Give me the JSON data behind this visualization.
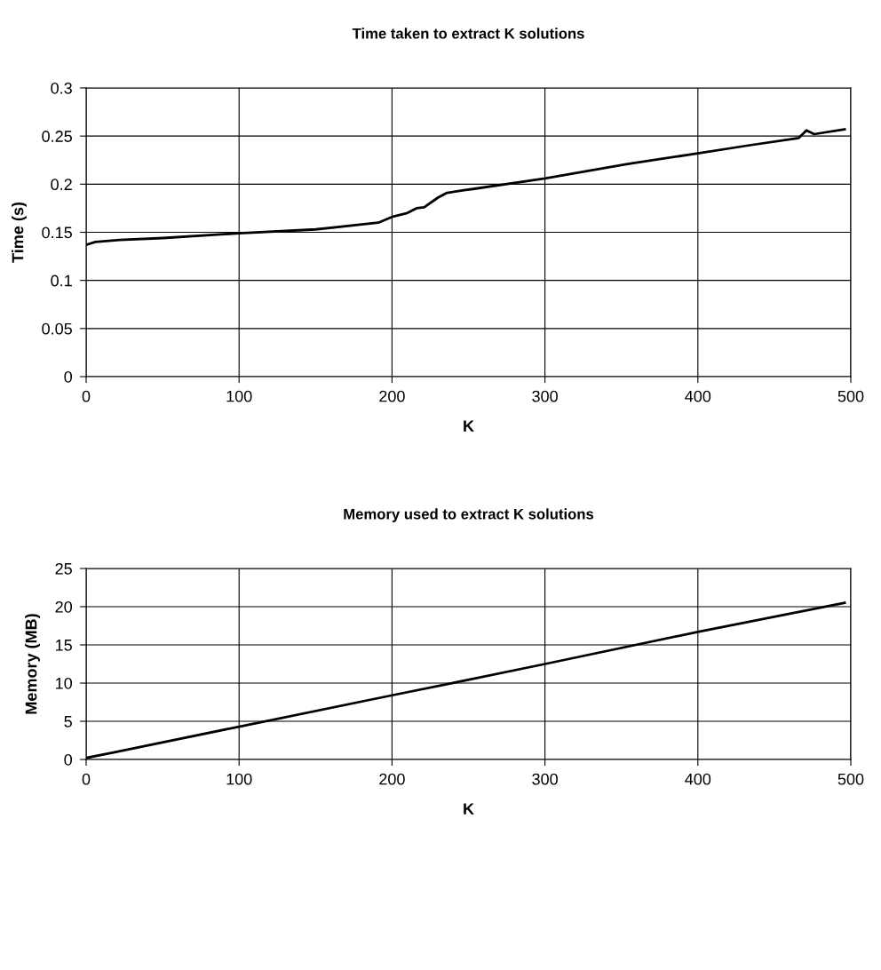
{
  "chart_data": [
    {
      "type": "line",
      "title": "Time taken to extract K solutions",
      "xlabel": "K",
      "ylabel": "Time (s)",
      "series": [
        {
          "color": "#000000",
          "x": [
            0,
            6,
            22,
            50,
            100,
            150,
            191,
            200,
            210,
            216,
            221,
            230,
            236,
            248,
            253,
            300,
            354,
            400,
            432,
            466,
            471,
            476,
            496
          ],
          "values": [
            0.137,
            0.14,
            0.142,
            0.144,
            0.149,
            0.153,
            0.16,
            0.166,
            0.17,
            0.175,
            0.176,
            0.186,
            0.191,
            0.194,
            0.195,
            0.206,
            0.221,
            0.232,
            0.24,
            0.248,
            0.256,
            0.252,
            0.257
          ]
        }
      ],
      "xlim": [
        0,
        500
      ],
      "xticks": [
        0,
        100,
        200,
        300,
        400,
        500
      ],
      "ylim": [
        0,
        0.3
      ],
      "yticks": [
        0,
        0.05,
        0.1,
        0.15,
        0.2,
        0.25,
        0.3
      ],
      "grid": true,
      "legend": false,
      "marker": "none",
      "line_style": "solid"
    },
    {
      "type": "line",
      "title": "Memory used to extract K solutions",
      "xlabel": "K",
      "ylabel": "Memory (MB)",
      "series": [
        {
          "color": "#000000",
          "x": [
            0,
            20,
            100,
            200,
            237,
            300,
            400,
            496
          ],
          "values": [
            0.2,
            1.0,
            4.3,
            8.4,
            9.9,
            12.5,
            16.7,
            20.5
          ]
        }
      ],
      "xlim": [
        0,
        500
      ],
      "xticks": [
        0,
        100,
        200,
        300,
        400,
        500
      ],
      "ylim": [
        0,
        25
      ],
      "yticks": [
        0,
        5,
        10,
        15,
        20,
        25
      ],
      "grid": true,
      "legend": false,
      "marker": "none",
      "line_style": "solid"
    }
  ]
}
